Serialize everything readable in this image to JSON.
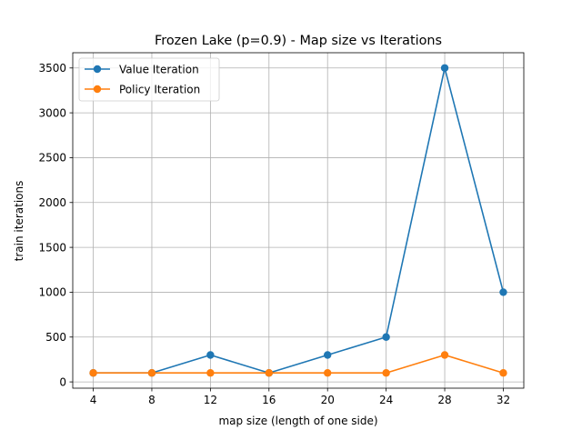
{
  "chart_data": {
    "type": "line",
    "title": "Frozen Lake (p=0.9) - Map size vs Iterations",
    "xlabel": "map size (length of one side)",
    "ylabel": "train iterations",
    "x": [
      4,
      8,
      12,
      16,
      20,
      24,
      28,
      32
    ],
    "x_ticks": [
      "4",
      "8",
      "12",
      "16",
      "20",
      "24",
      "28",
      "32"
    ],
    "y_ticks": [
      "0",
      "500",
      "1000",
      "1500",
      "2000",
      "2500",
      "3000",
      "3500"
    ],
    "xlim": [
      2.6,
      33.4
    ],
    "ylim": [
      -70,
      3670
    ],
    "grid": true,
    "legend_position": "upper-left",
    "series": [
      {
        "name": "Value Iteration",
        "color": "#1f77b4",
        "values": [
          100,
          100,
          300,
          100,
          300,
          500,
          3500,
          1000
        ]
      },
      {
        "name": "Policy Iteration",
        "color": "#ff7f0e",
        "values": [
          100,
          100,
          100,
          100,
          100,
          100,
          300,
          100
        ]
      }
    ]
  }
}
